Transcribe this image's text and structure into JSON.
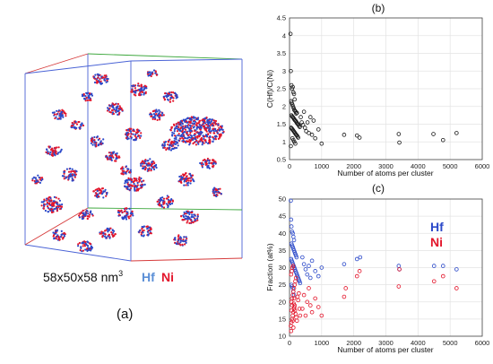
{
  "colors": {
    "hf": "#2b49c9",
    "ni": "#e3162c",
    "hf_text_3d": "#5b8fd6",
    "box_red": "#d63a3a",
    "box_green": "#3aa63a",
    "box_blue": "#4a63d6",
    "scatter_b": "#1a1a1a",
    "grid": "#e3e3e3"
  },
  "panel_a": {
    "dimensions_text": "58x50x58 nm",
    "dimensions_superscript": "3",
    "legend_hf": "Hf",
    "legend_ni": "Ni",
    "label": "(a)"
  },
  "chart_data": [
    {
      "type": "scatter",
      "label": "(b)",
      "xlabel": "Number of atoms per cluster",
      "ylabel": "C(Hf)/C(Ni)",
      "xlim": [
        0,
        6000
      ],
      "ylim": [
        0.5,
        4.5
      ],
      "xticks": [
        0,
        1000,
        2000,
        3000,
        4000,
        5000,
        6000
      ],
      "yticks": [
        0.5,
        1,
        1.5,
        2,
        2.5,
        3,
        3.5,
        4,
        4.5
      ],
      "ytick_labels": [
        "0.5",
        "1",
        "1.5",
        "2",
        "2.5",
        "3",
        "3.5",
        "4",
        "4.5"
      ],
      "grid": true,
      "marker": "open-circle",
      "series": [
        {
          "name": "",
          "color": "#1a1a1a",
          "points": [
            [
              30,
              4.05
            ],
            [
              40,
              3.0
            ],
            [
              60,
              2.6
            ],
            [
              80,
              2.5
            ],
            [
              100,
              2.55
            ],
            [
              120,
              2.4
            ],
            [
              140,
              2.35
            ],
            [
              160,
              2.2
            ],
            [
              50,
              2.15
            ],
            [
              70,
              2.1
            ],
            [
              90,
              2.05
            ],
            [
              110,
              2.0
            ],
            [
              130,
              1.95
            ],
            [
              150,
              1.9
            ],
            [
              170,
              1.88
            ],
            [
              190,
              1.85
            ],
            [
              210,
              1.8
            ],
            [
              230,
              1.82
            ],
            [
              60,
              1.75
            ],
            [
              80,
              1.72
            ],
            [
              100,
              1.7
            ],
            [
              120,
              1.68
            ],
            [
              140,
              1.65
            ],
            [
              160,
              1.62
            ],
            [
              180,
              1.6
            ],
            [
              200,
              1.58
            ],
            [
              220,
              1.55
            ],
            [
              240,
              1.52
            ],
            [
              260,
              1.5
            ],
            [
              280,
              1.48
            ],
            [
              300,
              1.45
            ],
            [
              320,
              1.42
            ],
            [
              50,
              1.4
            ],
            [
              70,
              1.38
            ],
            [
              90,
              1.35
            ],
            [
              110,
              1.33
            ],
            [
              130,
              1.3
            ],
            [
              150,
              1.28
            ],
            [
              170,
              1.25
            ],
            [
              190,
              1.22
            ],
            [
              210,
              1.2
            ],
            [
              230,
              1.18
            ],
            [
              250,
              1.15
            ],
            [
              270,
              1.12
            ],
            [
              90,
              1.1
            ],
            [
              120,
              1.05
            ],
            [
              150,
              1.0
            ],
            [
              180,
              0.95
            ],
            [
              40,
              0.88
            ],
            [
              350,
              1.7
            ],
            [
              380,
              1.55
            ],
            [
              420,
              1.48
            ],
            [
              450,
              1.85
            ],
            [
              480,
              1.4
            ],
            [
              520,
              1.3
            ],
            [
              560,
              1.55
            ],
            [
              600,
              1.25
            ],
            [
              650,
              1.7
            ],
            [
              700,
              1.2
            ],
            [
              750,
              1.6
            ],
            [
              800,
              1.1
            ],
            [
              900,
              1.35
            ],
            [
              1000,
              0.95
            ],
            [
              1700,
              1.2
            ],
            [
              2100,
              1.18
            ],
            [
              2180,
              1.12
            ],
            [
              3400,
              1.22
            ],
            [
              3420,
              0.98
            ],
            [
              4480,
              1.22
            ],
            [
              4780,
              1.05
            ],
            [
              5200,
              1.25
            ]
          ]
        }
      ]
    },
    {
      "type": "scatter",
      "label": "(c)",
      "xlabel": "Number of atoms per cluster",
      "ylabel": "Fraction (at%)",
      "xlim": [
        0,
        6000
      ],
      "ylim": [
        10,
        50
      ],
      "xticks": [
        0,
        1000,
        2000,
        3000,
        4000,
        5000,
        6000
      ],
      "yticks": [
        10,
        15,
        20,
        25,
        30,
        35,
        40,
        45,
        50
      ],
      "grid": true,
      "marker": "open-circle",
      "series": [
        {
          "name": "Hf",
          "color": "#2b49c9",
          "points": [
            [
              40,
              49.5
            ],
            [
              50,
              44
            ],
            [
              60,
              42
            ],
            [
              80,
              40.5
            ],
            [
              100,
              40
            ],
            [
              120,
              39
            ],
            [
              140,
              38
            ],
            [
              60,
              37
            ],
            [
              80,
              36.5
            ],
            [
              100,
              36
            ],
            [
              120,
              35.5
            ],
            [
              140,
              35
            ],
            [
              160,
              34.5
            ],
            [
              180,
              34
            ],
            [
              200,
              33.5
            ],
            [
              220,
              33
            ],
            [
              50,
              32.5
            ],
            [
              70,
              32
            ],
            [
              90,
              31.5
            ],
            [
              110,
              31
            ],
            [
              130,
              30.5
            ],
            [
              150,
              30
            ],
            [
              170,
              29.5
            ],
            [
              190,
              29
            ],
            [
              210,
              28.5
            ],
            [
              230,
              28
            ],
            [
              250,
              27.5
            ],
            [
              270,
              27
            ],
            [
              290,
              26.5
            ],
            [
              310,
              26
            ],
            [
              330,
              25.5
            ],
            [
              60,
              25
            ],
            [
              80,
              24.5
            ],
            [
              100,
              24
            ],
            [
              120,
              23
            ],
            [
              140,
              22
            ],
            [
              400,
              33
            ],
            [
              450,
              31
            ],
            [
              500,
              29.5
            ],
            [
              550,
              28
            ],
            [
              600,
              30.5
            ],
            [
              650,
              27
            ],
            [
              700,
              32
            ],
            [
              800,
              29
            ],
            [
              900,
              27.5
            ],
            [
              1000,
              30
            ],
            [
              1700,
              31
            ],
            [
              2100,
              32.5
            ],
            [
              2200,
              33
            ],
            [
              3400,
              30.5
            ],
            [
              3420,
              29.5
            ],
            [
              4500,
              30.5
            ],
            [
              4780,
              30.5
            ],
            [
              5200,
              29.5
            ]
          ]
        },
        {
          "name": "Ni",
          "color": "#e3162c",
          "points": [
            [
              40,
              13
            ],
            [
              50,
              11.5
            ],
            [
              60,
              14
            ],
            [
              80,
              15
            ],
            [
              100,
              16
            ],
            [
              120,
              17
            ],
            [
              140,
              18
            ],
            [
              160,
              19
            ],
            [
              60,
              20
            ],
            [
              80,
              21
            ],
            [
              100,
              22
            ],
            [
              120,
              23
            ],
            [
              140,
              24
            ],
            [
              160,
              25
            ],
            [
              180,
              26
            ],
            [
              200,
              27
            ],
            [
              50,
              28
            ],
            [
              70,
              29
            ],
            [
              90,
              30
            ],
            [
              110,
              30.5
            ],
            [
              130,
              19.5
            ],
            [
              150,
              18.5
            ],
            [
              170,
              17.5
            ],
            [
              190,
              16.5
            ],
            [
              210,
              15.5
            ],
            [
              230,
              14.5
            ],
            [
              250,
              21.5
            ],
            [
              270,
              20.5
            ],
            [
              290,
              22.5
            ],
            [
              310,
              18
            ],
            [
              330,
              16
            ],
            [
              60,
              17.5
            ],
            [
              80,
              19
            ],
            [
              100,
              14.5
            ],
            [
              120,
              12.5
            ],
            [
              140,
              21
            ],
            [
              400,
              18
            ],
            [
              450,
              22
            ],
            [
              500,
              16
            ],
            [
              550,
              20
            ],
            [
              600,
              24
            ],
            [
              650,
              19
            ],
            [
              700,
              17
            ],
            [
              800,
              21
            ],
            [
              900,
              18.5
            ],
            [
              1000,
              16
            ],
            [
              1700,
              21.5
            ],
            [
              1750,
              24
            ],
            [
              2100,
              27.5
            ],
            [
              2180,
              29
            ],
            [
              3400,
              24.5
            ],
            [
              3420,
              29.5
            ],
            [
              4500,
              26
            ],
            [
              4780,
              27.5
            ],
            [
              5200,
              24
            ]
          ]
        }
      ],
      "legend": [
        "Hf",
        "Ni"
      ]
    }
  ]
}
